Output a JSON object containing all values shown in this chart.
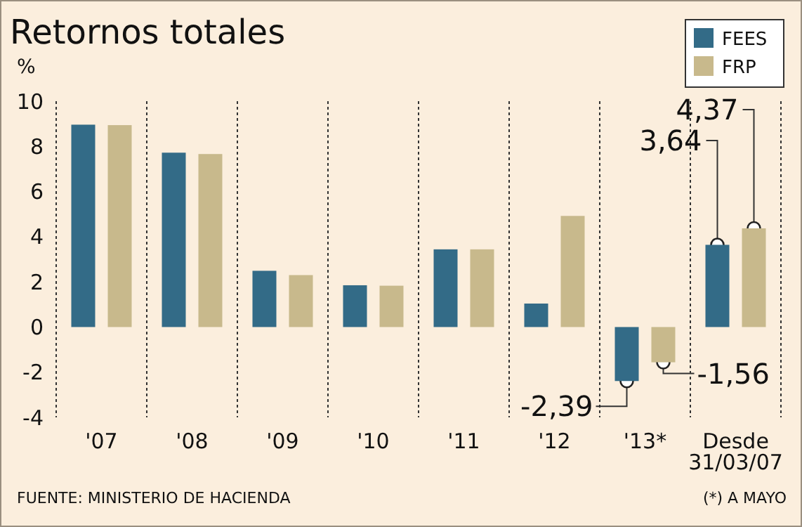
{
  "chart_data": {
    "type": "bar",
    "title": "Retornos totales",
    "ylabel": "%",
    "categories": [
      "'07",
      "'08",
      "'09",
      "'10",
      "'11",
      "'12",
      "'13*",
      "Desde 31/03/07"
    ],
    "series": [
      {
        "name": "FEES",
        "color": "#336b87",
        "values": [
          8.96,
          7.72,
          2.49,
          1.85,
          3.44,
          1.04,
          -2.39,
          3.64
        ],
        "value_labels": [
          null,
          null,
          null,
          null,
          null,
          null,
          "-2,39",
          "3,64"
        ]
      },
      {
        "name": "FRP",
        "color": "#c8b98c",
        "values": [
          8.94,
          7.66,
          2.3,
          1.83,
          3.44,
          4.92,
          -1.56,
          4.37
        ],
        "value_labels": [
          null,
          null,
          null,
          null,
          null,
          null,
          "-1,56",
          "4,37"
        ]
      }
    ],
    "ylim": [
      -4,
      10
    ],
    "yticks": [
      -4,
      -2,
      0,
      2,
      4,
      6,
      8,
      10
    ],
    "grid": false,
    "legend": "top right",
    "annotations": [
      "FUENTE: MINISTERIO DE HACIENDA",
      "(*) A MAYO"
    ]
  }
}
